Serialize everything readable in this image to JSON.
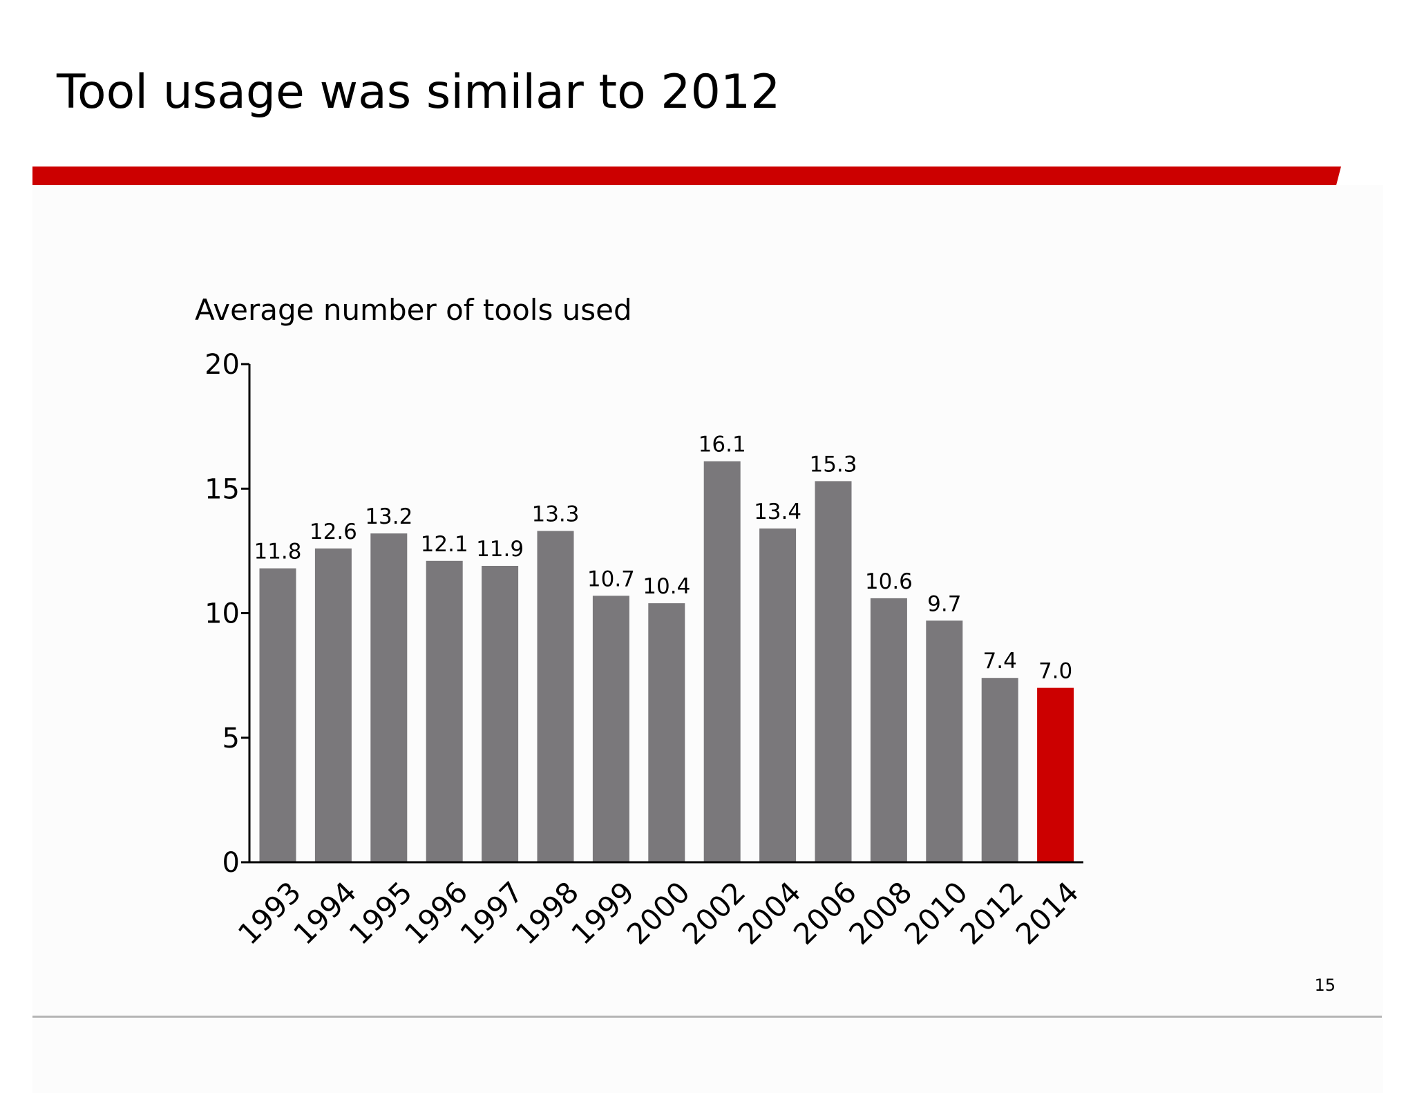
{
  "slide": {
    "title": "Tool usage was similar to 2012",
    "page_number": "15",
    "accent_color": "#cc0000",
    "rule_color": "#cc0000",
    "footer_rule_color": "#b4b4b4"
  },
  "chart_data": {
    "type": "bar",
    "title": "Average number of tools used",
    "xlabel": "",
    "ylabel": "",
    "categories": [
      "1993",
      "1994",
      "1995",
      "1996",
      "1997",
      "1998",
      "1999",
      "2000",
      "2002",
      "2004",
      "2006",
      "2008",
      "2010",
      "2012",
      "2014"
    ],
    "values": [
      11.8,
      12.6,
      13.2,
      12.1,
      11.9,
      13.3,
      10.7,
      10.4,
      16.1,
      13.4,
      15.3,
      10.6,
      9.7,
      7.4,
      7.0
    ],
    "value_labels": [
      "11.8",
      "12.6",
      "13.2",
      "12.1",
      "11.9",
      "13.3",
      "10.7",
      "10.4",
      "16.1",
      "13.4",
      "15.3",
      "10.6",
      "9.7",
      "7.4",
      "7.0"
    ],
    "ylim": [
      0,
      20
    ],
    "yticks": [
      0,
      5,
      10,
      15,
      20
    ],
    "grid": false,
    "legend": "none",
    "bar_color": "#7a787b",
    "highlight_color": "#cc0000",
    "highlight_category": "2014"
  }
}
